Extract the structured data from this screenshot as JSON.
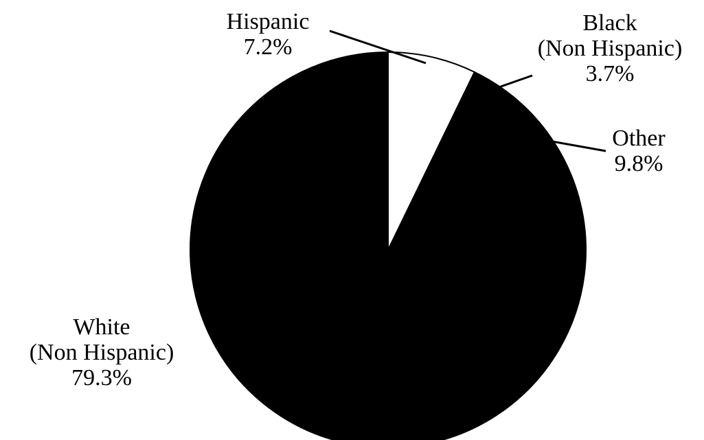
{
  "chart_data": {
    "type": "pie",
    "title": "",
    "slices": [
      {
        "name": "Hispanic",
        "value": 7.2,
        "color": "#ffffff",
        "label_lines": [
          "Hispanic",
          "7.2%"
        ]
      },
      {
        "name": "Black (Non Hispanic)",
        "value": 3.7,
        "color": "#000000",
        "label_lines": [
          "Black",
          "(Non Hispanic)",
          "3.7%"
        ]
      },
      {
        "name": "Other",
        "value": 9.8,
        "color": "#000000",
        "label_lines": [
          "Other",
          "9.8%"
        ]
      },
      {
        "name": "White (Non Hispanic)",
        "value": 79.3,
        "color": "#000000",
        "label_lines": [
          "White",
          "(Non Hispanic)",
          "79.3%"
        ]
      }
    ],
    "start_angle_deg": 0,
    "direction": "clockwise",
    "label_placement": "outside-with-leader-lines"
  }
}
